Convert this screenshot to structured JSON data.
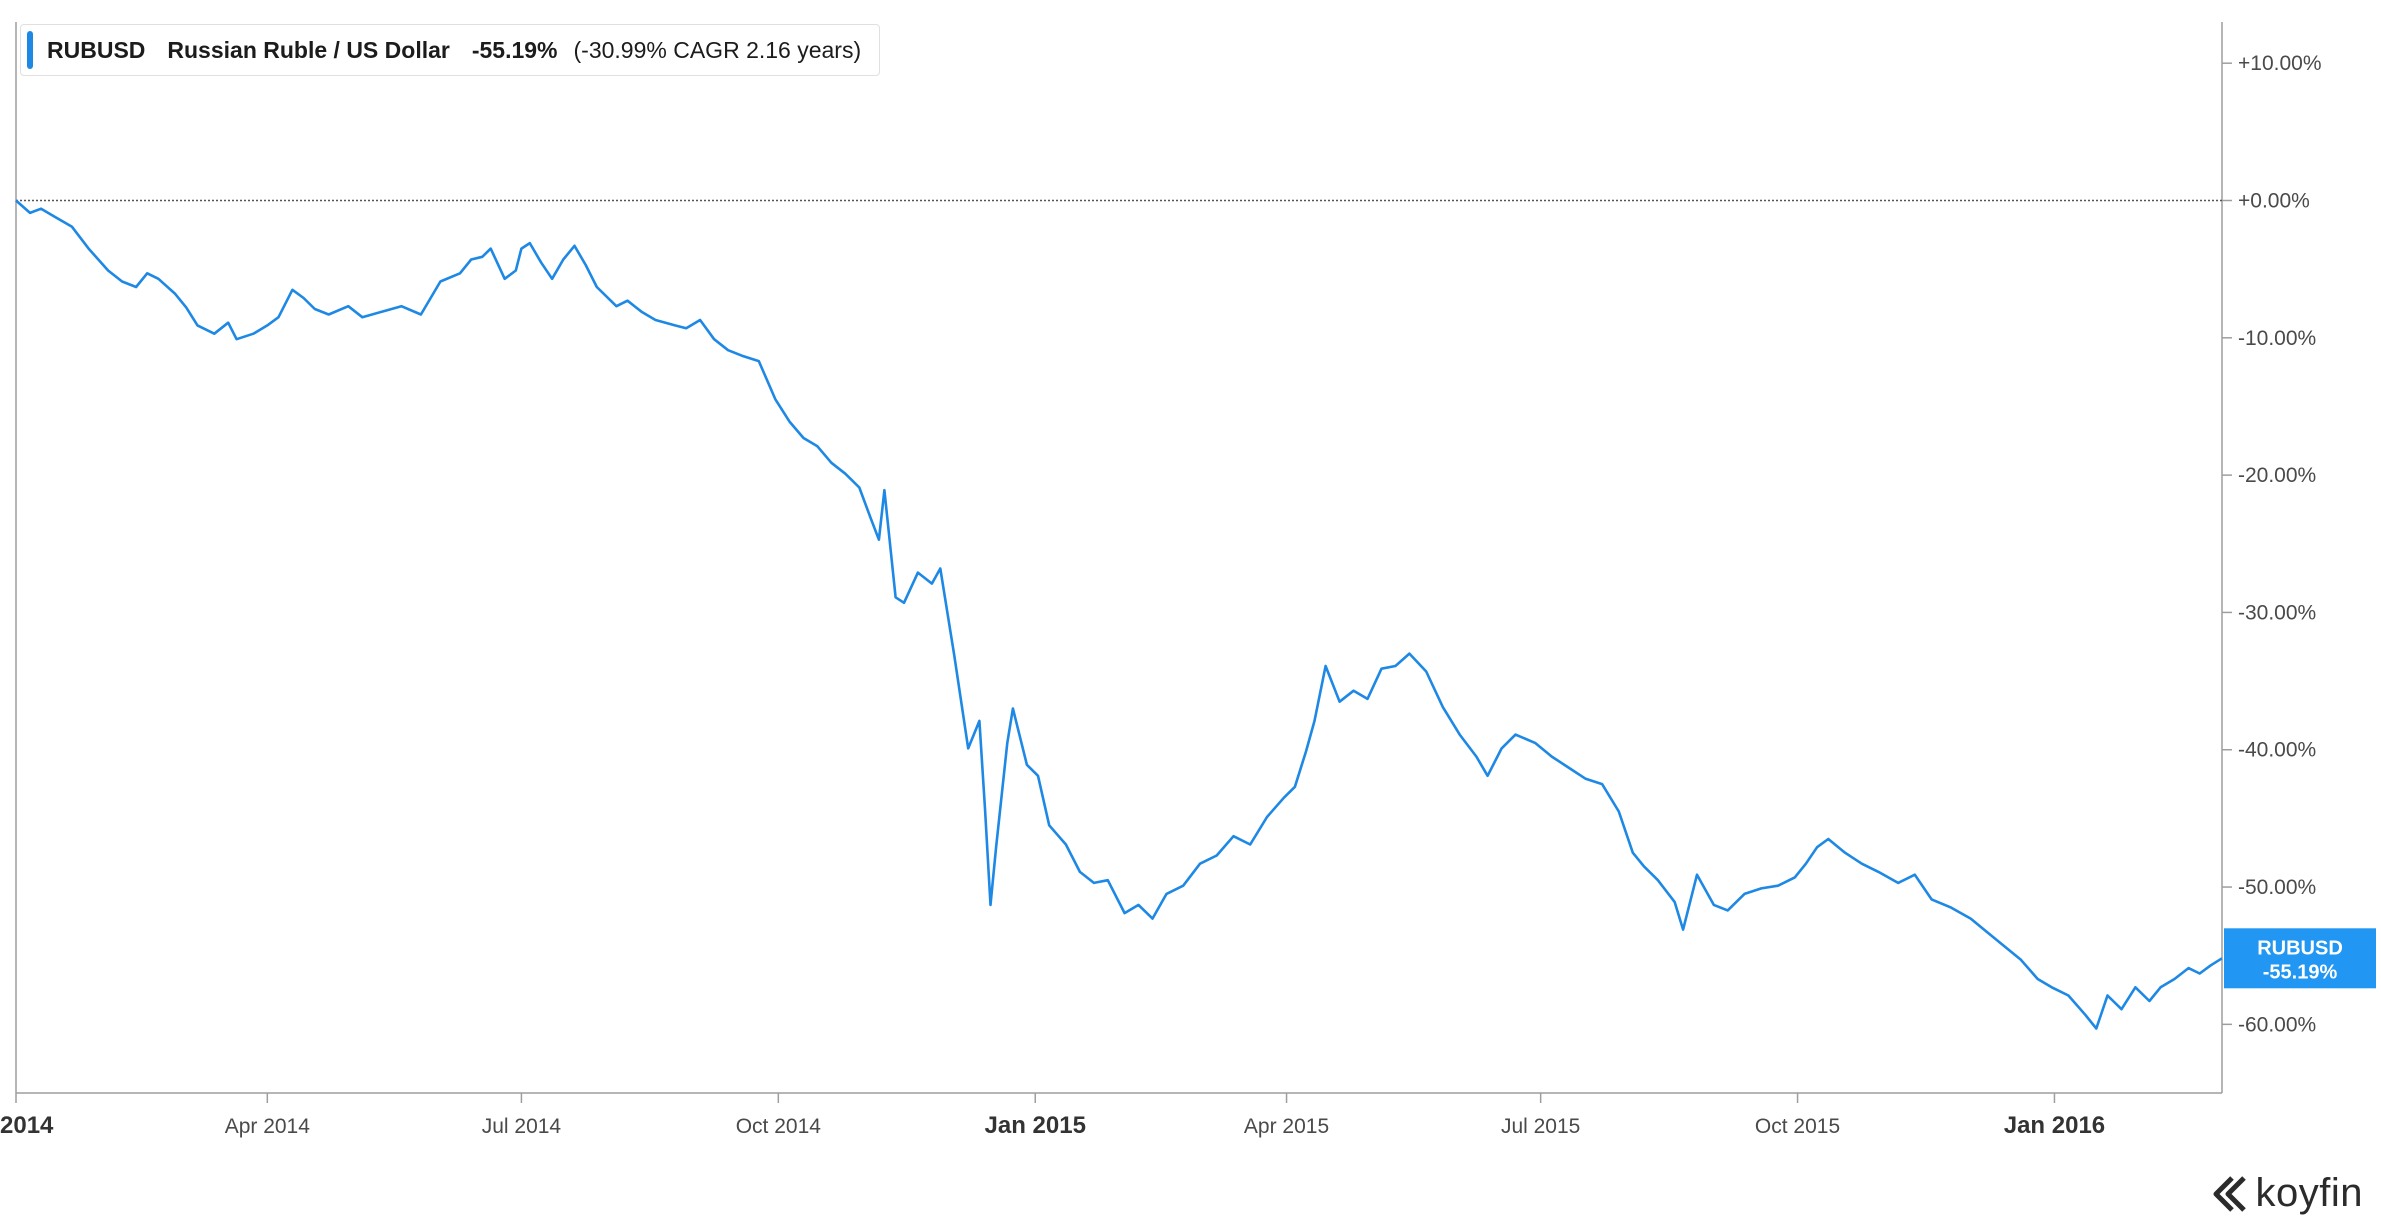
{
  "legend": {
    "ticker": "RUBUSD",
    "name": "Russian Ruble / US Dollar",
    "change": "-55.19%",
    "cagr": "(-30.99% CAGR 2.16 years)"
  },
  "last_value_tag": {
    "ticker": "RUBUSD",
    "value": "-55.19%"
  },
  "brand": "koyfin",
  "icons": {
    "brand_logo": "koyfin-logo-icon"
  },
  "colors": {
    "series": "#1e88e5",
    "zero_line": "#555555",
    "axis": "#9e9e9e",
    "tag_bg": "#2196f3"
  },
  "chart_data": {
    "type": "line",
    "title": "",
    "xlabel": "",
    "ylabel": "",
    "ylim": [
      -65,
      13
    ],
    "xlim": [
      "2014-01-01",
      "2016-03-01"
    ],
    "grid": false,
    "legend_position": "top-left",
    "y_axis_side": "right",
    "y_ticks": [
      "+10.00%",
      "+0.00%",
      "-10.00%",
      "-20.00%",
      "-30.00%",
      "-40.00%",
      "-50.00%",
      "-60.00%"
    ],
    "x_ticks": [
      {
        "date": "2014-01-01",
        "label": "2014",
        "major": true
      },
      {
        "date": "2014-04-01",
        "label": "Apr 2014",
        "major": false
      },
      {
        "date": "2014-07-01",
        "label": "Jul 2014",
        "major": false
      },
      {
        "date": "2014-10-01",
        "label": "Oct 2014",
        "major": false
      },
      {
        "date": "2015-01-01",
        "label": "Jan 2015",
        "major": true
      },
      {
        "date": "2015-04-01",
        "label": "Apr 2015",
        "major": false
      },
      {
        "date": "2015-07-01",
        "label": "Jul 2015",
        "major": false
      },
      {
        "date": "2015-10-01",
        "label": "Oct 2015",
        "major": false
      },
      {
        "date": "2016-01-01",
        "label": "Jan 2016",
        "major": true
      }
    ],
    "series": [
      {
        "name": "RUBUSD",
        "points": [
          [
            "2014-01-01",
            0.0
          ],
          [
            "2014-01-06",
            -0.9
          ],
          [
            "2014-01-10",
            -0.6
          ],
          [
            "2014-01-15",
            -1.2
          ],
          [
            "2014-01-21",
            -1.9
          ],
          [
            "2014-01-27",
            -3.5
          ],
          [
            "2014-02-03",
            -5.1
          ],
          [
            "2014-02-08",
            -5.9
          ],
          [
            "2014-02-13",
            -6.3
          ],
          [
            "2014-02-17",
            -5.3
          ],
          [
            "2014-02-21",
            -5.7
          ],
          [
            "2014-02-27",
            -6.8
          ],
          [
            "2014-03-03",
            -7.8
          ],
          [
            "2014-03-07",
            -9.1
          ],
          [
            "2014-03-13",
            -9.7
          ],
          [
            "2014-03-18",
            -8.9
          ],
          [
            "2014-03-21",
            -10.1
          ],
          [
            "2014-03-27",
            -9.7
          ],
          [
            "2014-04-01",
            -9.1
          ],
          [
            "2014-04-05",
            -8.5
          ],
          [
            "2014-04-10",
            -6.5
          ],
          [
            "2014-04-14",
            -7.1
          ],
          [
            "2014-04-18",
            -7.9
          ],
          [
            "2014-04-23",
            -8.3
          ],
          [
            "2014-04-30",
            -7.7
          ],
          [
            "2014-05-05",
            -8.5
          ],
          [
            "2014-05-12",
            -8.1
          ],
          [
            "2014-05-19",
            -7.7
          ],
          [
            "2014-05-26",
            -8.3
          ],
          [
            "2014-06-02",
            -5.9
          ],
          [
            "2014-06-09",
            -5.3
          ],
          [
            "2014-06-13",
            -4.3
          ],
          [
            "2014-06-17",
            -4.1
          ],
          [
            "2014-06-20",
            -3.5
          ],
          [
            "2014-06-25",
            -5.7
          ],
          [
            "2014-06-29",
            -5.1
          ],
          [
            "2014-07-01",
            -3.5
          ],
          [
            "2014-07-04",
            -3.1
          ],
          [
            "2014-07-08",
            -4.5
          ],
          [
            "2014-07-12",
            -5.7
          ],
          [
            "2014-07-16",
            -4.3
          ],
          [
            "2014-07-20",
            -3.3
          ],
          [
            "2014-07-24",
            -4.7
          ],
          [
            "2014-07-28",
            -6.3
          ],
          [
            "2014-08-04",
            -7.7
          ],
          [
            "2014-08-08",
            -7.3
          ],
          [
            "2014-08-13",
            -8.1
          ],
          [
            "2014-08-18",
            -8.7
          ],
          [
            "2014-08-25",
            -9.1
          ],
          [
            "2014-08-29",
            -9.3
          ],
          [
            "2014-09-03",
            -8.7
          ],
          [
            "2014-09-08",
            -10.1
          ],
          [
            "2014-09-13",
            -10.9
          ],
          [
            "2014-09-18",
            -11.3
          ],
          [
            "2014-09-24",
            -11.7
          ],
          [
            "2014-09-30",
            -14.5
          ],
          [
            "2014-10-05",
            -16.1
          ],
          [
            "2014-10-10",
            -17.3
          ],
          [
            "2014-10-15",
            -17.9
          ],
          [
            "2014-10-20",
            -19.1
          ],
          [
            "2014-10-25",
            -19.9
          ],
          [
            "2014-10-30",
            -20.9
          ],
          [
            "2014-11-03",
            -23.1
          ],
          [
            "2014-11-06",
            -24.7
          ],
          [
            "2014-11-08",
            -21.1
          ],
          [
            "2014-11-12",
            -28.9
          ],
          [
            "2014-11-15",
            -29.3
          ],
          [
            "2014-11-20",
            -27.1
          ],
          [
            "2014-11-25",
            -27.9
          ],
          [
            "2014-11-28",
            -26.8
          ],
          [
            "2014-12-03",
            -33.1
          ],
          [
            "2014-12-08",
            -39.9
          ],
          [
            "2014-12-12",
            -37.9
          ],
          [
            "2014-12-14",
            -44.3
          ],
          [
            "2014-12-16",
            -51.3
          ],
          [
            "2014-12-18",
            -47.1
          ],
          [
            "2014-12-22",
            -39.5
          ],
          [
            "2014-12-24",
            -37.0
          ],
          [
            "2014-12-29",
            -41.1
          ],
          [
            "2015-01-02",
            -41.9
          ],
          [
            "2015-01-06",
            -45.5
          ],
          [
            "2015-01-12",
            -46.9
          ],
          [
            "2015-01-17",
            -48.9
          ],
          [
            "2015-01-22",
            -49.7
          ],
          [
            "2015-01-27",
            -49.5
          ],
          [
            "2015-02-02",
            -51.9
          ],
          [
            "2015-02-07",
            -51.3
          ],
          [
            "2015-02-12",
            -52.3
          ],
          [
            "2015-02-17",
            -50.5
          ],
          [
            "2015-02-23",
            -49.9
          ],
          [
            "2015-03-01",
            -48.3
          ],
          [
            "2015-03-07",
            -47.7
          ],
          [
            "2015-03-13",
            -46.3
          ],
          [
            "2015-03-19",
            -46.9
          ],
          [
            "2015-03-25",
            -44.9
          ],
          [
            "2015-03-31",
            -43.5
          ],
          [
            "2015-04-04",
            -42.7
          ],
          [
            "2015-04-08",
            -40.1
          ],
          [
            "2015-04-11",
            -37.9
          ],
          [
            "2015-04-15",
            -33.9
          ],
          [
            "2015-04-20",
            -36.5
          ],
          [
            "2015-04-25",
            -35.7
          ],
          [
            "2015-04-30",
            -36.3
          ],
          [
            "2015-05-05",
            -34.1
          ],
          [
            "2015-05-10",
            -33.9
          ],
          [
            "2015-05-15",
            -33.0
          ],
          [
            "2015-05-21",
            -34.3
          ],
          [
            "2015-05-27",
            -36.9
          ],
          [
            "2015-06-02",
            -38.9
          ],
          [
            "2015-06-08",
            -40.5
          ],
          [
            "2015-06-12",
            -41.9
          ],
          [
            "2015-06-17",
            -39.9
          ],
          [
            "2015-06-22",
            -38.9
          ],
          [
            "2015-06-29",
            -39.5
          ],
          [
            "2015-07-05",
            -40.5
          ],
          [
            "2015-07-11",
            -41.3
          ],
          [
            "2015-07-17",
            -42.1
          ],
          [
            "2015-07-23",
            -42.5
          ],
          [
            "2015-07-29",
            -44.5
          ],
          [
            "2015-08-03",
            -47.5
          ],
          [
            "2015-08-07",
            -48.5
          ],
          [
            "2015-08-12",
            -49.5
          ],
          [
            "2015-08-18",
            -51.1
          ],
          [
            "2015-08-21",
            -53.1
          ],
          [
            "2015-08-26",
            -49.1
          ],
          [
            "2015-09-01",
            -51.3
          ],
          [
            "2015-09-06",
            -51.7
          ],
          [
            "2015-09-12",
            -50.5
          ],
          [
            "2015-09-18",
            -50.1
          ],
          [
            "2015-09-24",
            -49.9
          ],
          [
            "2015-09-30",
            -49.3
          ],
          [
            "2015-10-04",
            -48.3
          ],
          [
            "2015-10-08",
            -47.1
          ],
          [
            "2015-10-12",
            -46.5
          ],
          [
            "2015-10-18",
            -47.5
          ],
          [
            "2015-10-24",
            -48.3
          ],
          [
            "2015-10-30",
            -48.9
          ],
          [
            "2015-11-06",
            -49.7
          ],
          [
            "2015-11-12",
            -49.1
          ],
          [
            "2015-11-18",
            -50.9
          ],
          [
            "2015-11-25",
            -51.5
          ],
          [
            "2015-12-02",
            -52.3
          ],
          [
            "2015-12-08",
            -53.3
          ],
          [
            "2015-12-14",
            -54.3
          ],
          [
            "2015-12-20",
            -55.3
          ],
          [
            "2015-12-26",
            -56.7
          ],
          [
            "2015-12-31",
            -57.3
          ],
          [
            "2016-01-06",
            -57.9
          ],
          [
            "2016-01-12",
            -59.3
          ],
          [
            "2016-01-16",
            -60.3
          ],
          [
            "2016-01-20",
            -57.9
          ],
          [
            "2016-01-25",
            -58.9
          ],
          [
            "2016-01-30",
            -57.3
          ],
          [
            "2016-02-04",
            -58.3
          ],
          [
            "2016-02-08",
            -57.3
          ],
          [
            "2016-02-13",
            -56.7
          ],
          [
            "2016-02-18",
            -55.9
          ],
          [
            "2016-02-22",
            -56.3
          ],
          [
            "2016-02-26",
            -55.7
          ],
          [
            "2016-03-01",
            -55.19
          ]
        ]
      }
    ]
  }
}
